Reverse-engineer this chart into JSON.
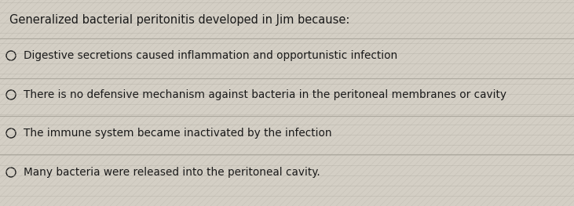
{
  "title": "Generalized bacterial peritonitis developed in Jim because:",
  "options": [
    "Digestive secretions caused inflammation and opportunistic infection",
    "There is no defensive mechanism against bacteria in the peritoneal membranes or cavity",
    "The immune system became inactivated by the infection",
    "Many bacteria were released into the peritoneal cavity."
  ],
  "bg_color": "#d4cfc5",
  "stripe_color": "#c2bdb3",
  "line_color": "#a8a49a",
  "text_color": "#1a1a1a",
  "title_fontsize": 10.5,
  "option_fontsize": 9.8,
  "figsize": [
    7.31,
    2.63
  ],
  "dpi": 100
}
